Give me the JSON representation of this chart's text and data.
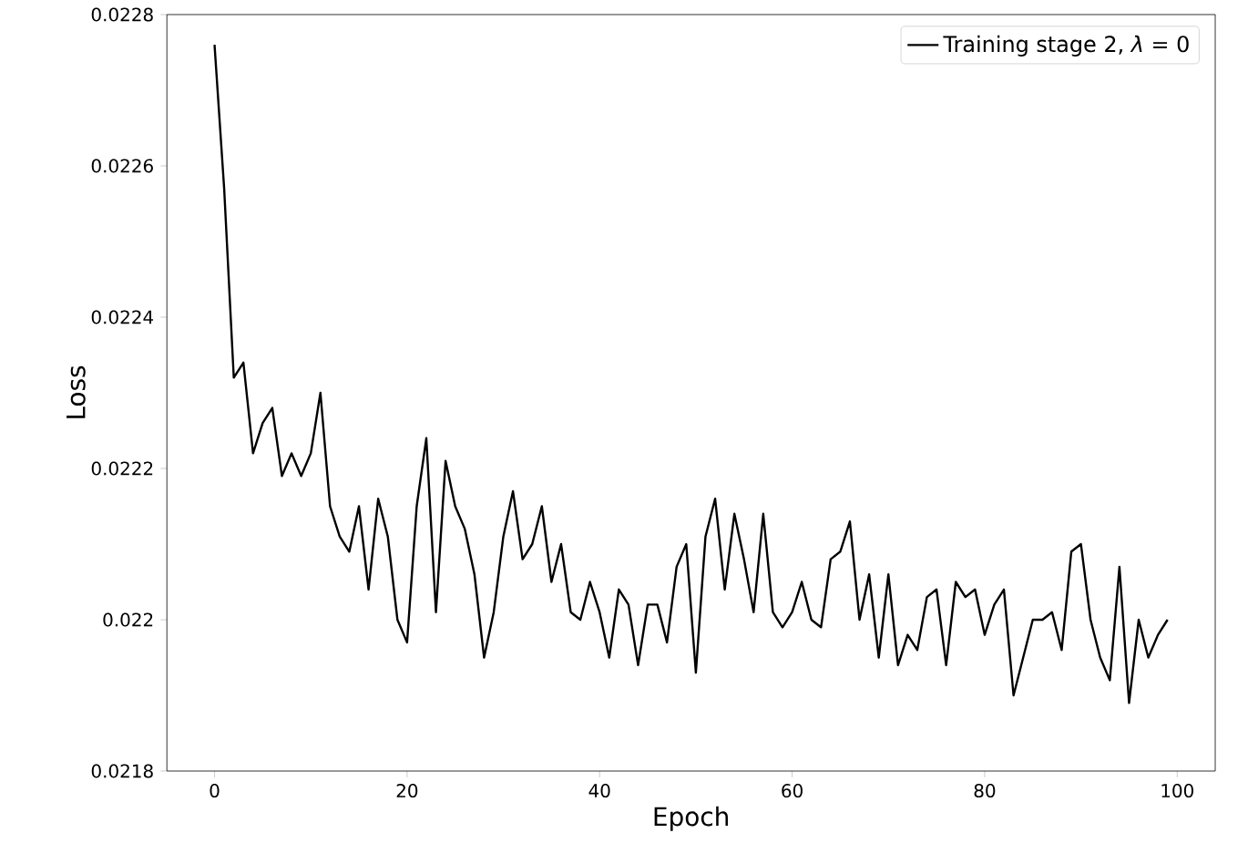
{
  "chart_data": {
    "type": "line",
    "xlabel": "Epoch",
    "ylabel": "Loss",
    "x": [
      0,
      1,
      2,
      3,
      4,
      5,
      6,
      7,
      8,
      9,
      10,
      11,
      12,
      13,
      14,
      15,
      16,
      17,
      18,
      19,
      20,
      21,
      22,
      23,
      24,
      25,
      26,
      27,
      28,
      29,
      30,
      31,
      32,
      33,
      34,
      35,
      36,
      37,
      38,
      39,
      40,
      41,
      42,
      43,
      44,
      45,
      46,
      47,
      48,
      49,
      50,
      51,
      52,
      53,
      54,
      55,
      56,
      57,
      58,
      59,
      60,
      61,
      62,
      63,
      64,
      65,
      66,
      67,
      68,
      69,
      70,
      71,
      72,
      73,
      74,
      75,
      76,
      77,
      78,
      79,
      80,
      81,
      82,
      83,
      84,
      85,
      86,
      87,
      88,
      89,
      90,
      91,
      92,
      93,
      94,
      95,
      96,
      97,
      98,
      99
    ],
    "series": [
      {
        "name": "Training stage 2, *λ* = 0",
        "color": "#000000",
        "values": [
          0.02276,
          0.02257,
          0.02232,
          0.02234,
          0.02222,
          0.02226,
          0.02228,
          0.02219,
          0.02222,
          0.02219,
          0.02222,
          0.0223,
          0.02215,
          0.02211,
          0.02209,
          0.02215,
          0.02204,
          0.02216,
          0.02211,
          0.022,
          0.02197,
          0.02215,
          0.02224,
          0.02201,
          0.02221,
          0.02215,
          0.02212,
          0.02206,
          0.02195,
          0.02201,
          0.02211,
          0.02217,
          0.02208,
          0.0221,
          0.02215,
          0.02205,
          0.0221,
          0.02201,
          0.022,
          0.02205,
          0.02201,
          0.02195,
          0.02204,
          0.02202,
          0.02194,
          0.02202,
          0.02202,
          0.02197,
          0.02207,
          0.0221,
          0.02193,
          0.02211,
          0.02216,
          0.02204,
          0.02214,
          0.02208,
          0.02201,
          0.02214,
          0.02201,
          0.02199,
          0.02201,
          0.02205,
          0.022,
          0.02199,
          0.02208,
          0.02209,
          0.02213,
          0.022,
          0.02206,
          0.02195,
          0.02206,
          0.02194,
          0.02198,
          0.02196,
          0.02203,
          0.02204,
          0.02194,
          0.02205,
          0.02203,
          0.02204,
          0.02198,
          0.02202,
          0.02204,
          0.0219,
          0.02195,
          0.022,
          0.022,
          0.02201,
          0.02196,
          0.02209,
          0.0221,
          0.022,
          0.02195,
          0.02192,
          0.02207,
          0.02189,
          0.022,
          0.02195,
          0.02198,
          0.022
        ]
      }
    ],
    "xlim": [
      -4.95,
      103.95
    ],
    "ylim": [
      0.0218,
      0.0228
    ],
    "xticks": [
      0,
      20,
      40,
      60,
      80,
      100
    ],
    "yticks": [
      0.0218,
      0.022,
      0.0222,
      0.0224,
      0.0226,
      0.0228
    ],
    "legend": "top right",
    "grid": false,
    "line_style": "solid"
  }
}
